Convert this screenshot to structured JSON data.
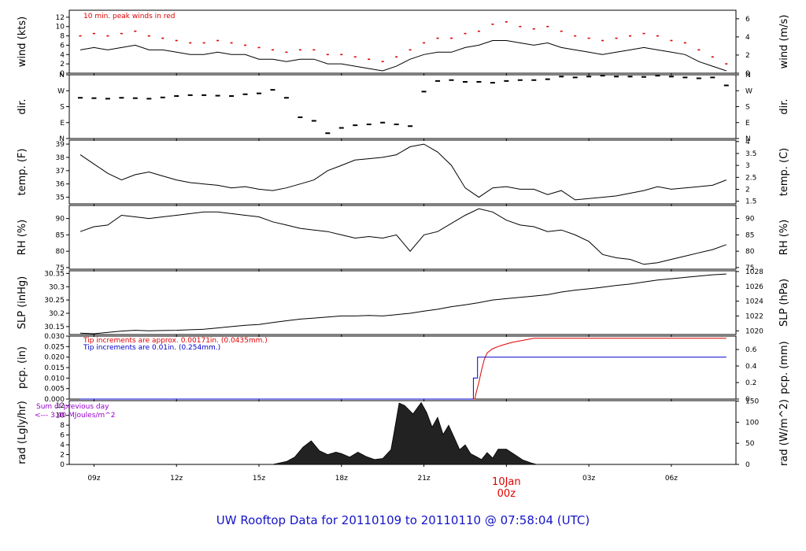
{
  "footer_title": "UW Rooftop Data for 20110109  to  20110110 @ 07:58:04  (UTC)",
  "date_label": "10Jan",
  "date_label_hour": "00z",
  "colors": {
    "red": "#e00000",
    "blue": "#0000cc",
    "purple": "#9900cc",
    "text_blue": "#1414c8"
  },
  "chart_data": [
    {
      "id": "wind",
      "type": "line",
      "ylabel": "wind (kts)",
      "ylabel_right": "wind (m/s)",
      "ylim": [
        0,
        13.5
      ],
      "yticks": [
        0,
        2,
        4,
        6,
        8,
        10,
        12
      ],
      "ylim_right": [
        0,
        6.94
      ],
      "yticks_right": [
        0,
        2,
        4,
        6
      ],
      "annotation": "10 min. peak winds in red",
      "series": [
        {
          "name": "wind speed",
          "x": [
            8.5,
            9,
            9.5,
            10,
            10.5,
            11,
            11.5,
            12,
            12.5,
            13,
            13.5,
            14,
            14.5,
            15,
            15.5,
            16,
            16.5,
            17,
            17.5,
            18,
            18.5,
            19,
            19.5,
            20,
            20.5,
            21,
            21.5,
            22,
            22.5,
            23,
            23.5,
            24,
            24.5,
            25,
            25.5,
            26,
            26.5,
            27,
            27.5,
            28,
            28.5,
            29,
            29.5,
            30,
            30.5,
            31,
            31.5,
            32
          ],
          "y": [
            5,
            5.5,
            5,
            5.5,
            6,
            5,
            5,
            4.5,
            4,
            4,
            4.5,
            4,
            4,
            3,
            3,
            2.5,
            3,
            3,
            2,
            2,
            1.5,
            1,
            0.5,
            1.5,
            3,
            4,
            4.5,
            4.5,
            5.5,
            6,
            7,
            7,
            6.5,
            6,
            6.5,
            5.5,
            5,
            4.5,
            4,
            4.5,
            5,
            5.5,
            5,
            4.5,
            4,
            2.5,
            1.5,
            0.5
          ]
        },
        {
          "name": "10 min. peak winds",
          "x": [
            8.5,
            9,
            9.5,
            10,
            10.5,
            11,
            11.5,
            12,
            12.5,
            13,
            13.5,
            14,
            14.5,
            15,
            15.5,
            16,
            16.5,
            17,
            17.5,
            18,
            18.5,
            19,
            19.5,
            20,
            20.5,
            21,
            21.5,
            22,
            22.5,
            23,
            23.5,
            24,
            24.5,
            25,
            25.5,
            26,
            26.5,
            27,
            27.5,
            28,
            28.5,
            29,
            29.5,
            30,
            30.5,
            31,
            31.5,
            32
          ],
          "y": [
            8,
            8.5,
            8,
            8.5,
            9,
            8,
            7.5,
            7,
            6.5,
            6.5,
            7,
            6.5,
            6,
            5.5,
            5,
            4.5,
            5,
            5,
            4,
            4,
            3.5,
            3,
            2.5,
            3.5,
            5,
            6.5,
            7.5,
            7.5,
            8.5,
            9,
            10.5,
            11,
            10,
            9.5,
            10,
            9,
            8,
            7.5,
            7,
            7.5,
            8,
            8.5,
            8,
            7,
            6.5,
            5,
            3.5,
            2
          ]
        }
      ]
    },
    {
      "id": "dir",
      "type": "scatter",
      "ylabel": "dir.",
      "ylabel_right": "dir.",
      "ylim": [
        0,
        360
      ],
      "yticks": [
        0,
        90,
        180,
        270,
        360
      ],
      "yticklabels": [
        "N",
        "E",
        "S",
        "W",
        "N"
      ],
      "series": [
        {
          "name": "wind direction",
          "x": [
            8.5,
            9,
            9.5,
            10,
            10.5,
            11,
            11.5,
            12,
            12.5,
            13,
            13.5,
            14,
            14.5,
            15,
            15.5,
            16,
            16.5,
            17,
            17.5,
            18,
            18.5,
            19,
            19.5,
            20,
            20.5,
            21,
            21.5,
            22,
            22.5,
            23,
            23.5,
            24,
            24.5,
            25,
            25.5,
            26,
            26.5,
            27,
            27.5,
            28,
            28.5,
            29,
            29.5,
            30,
            30.5,
            31,
            31.5,
            32
          ],
          "y": [
            230,
            228,
            225,
            230,
            228,
            225,
            232,
            240,
            245,
            245,
            242,
            240,
            250,
            255,
            275,
            230,
            120,
            100,
            30,
            60,
            75,
            80,
            90,
            80,
            70,
            265,
            325,
            330,
            320,
            320,
            315,
            325,
            330,
            330,
            335,
            350,
            345,
            350,
            355,
            350,
            350,
            348,
            355,
            350,
            345,
            340,
            345,
            300
          ]
        }
      ]
    },
    {
      "id": "temp",
      "type": "line",
      "ylabel": "temp. (F)",
      "ylabel_right": "temp. (C)",
      "ylim": [
        34.5,
        39.3
      ],
      "yticks": [
        35,
        36,
        37,
        38,
        39
      ],
      "ylim_right": [
        1.39,
        4.06
      ],
      "yticks_right": [
        1.5,
        2,
        2.5,
        3,
        3.5,
        4
      ],
      "series": [
        {
          "name": "temperature",
          "x": [
            8.5,
            9,
            9.5,
            10,
            10.5,
            11,
            11.5,
            12,
            12.5,
            13,
            13.5,
            14,
            14.5,
            15,
            15.5,
            16,
            16.5,
            17,
            17.5,
            18,
            18.5,
            19,
            19.5,
            20,
            20.5,
            21,
            21.5,
            22,
            22.5,
            23,
            23.5,
            24,
            24.5,
            25,
            25.5,
            26,
            26.5,
            27,
            27.5,
            28,
            28.5,
            29,
            29.5,
            30,
            30.5,
            31,
            31.5,
            32
          ],
          "y": [
            38.2,
            37.5,
            36.8,
            36.3,
            36.7,
            36.9,
            36.6,
            36.3,
            36.1,
            36.0,
            35.9,
            35.7,
            35.8,
            35.6,
            35.5,
            35.7,
            36.0,
            36.3,
            37.0,
            37.4,
            37.8,
            37.9,
            38.0,
            38.2,
            38.8,
            39.0,
            38.4,
            37.4,
            35.7,
            35.0,
            35.7,
            35.8,
            35.6,
            35.6,
            35.2,
            35.5,
            34.8,
            34.9,
            35.0,
            35.1,
            35.3,
            35.5,
            35.8,
            35.6,
            35.7,
            35.8,
            35.9,
            36.3
          ]
        }
      ]
    },
    {
      "id": "rh",
      "type": "line",
      "ylabel": "RH (%)",
      "ylabel_right": "RH (%)",
      "ylim": [
        74.5,
        94
      ],
      "yticks": [
        75,
        80,
        85,
        90
      ],
      "series": [
        {
          "name": "relative humidity",
          "x": [
            8.5,
            9,
            9.5,
            10,
            10.5,
            11,
            11.5,
            12,
            12.5,
            13,
            13.5,
            14,
            14.5,
            15,
            15.5,
            16,
            16.5,
            17,
            17.5,
            18,
            18.5,
            19,
            19.5,
            20,
            20.5,
            21,
            21.5,
            22,
            22.5,
            23,
            23.5,
            24,
            24.5,
            25,
            25.5,
            26,
            26.5,
            27,
            27.5,
            28,
            28.5,
            29,
            29.5,
            30,
            30.5,
            31,
            31.5,
            32
          ],
          "y": [
            86,
            87.5,
            88,
            91,
            90.5,
            90,
            90.5,
            91,
            91.5,
            92,
            92,
            91.5,
            91,
            90.5,
            89,
            88,
            87,
            86.5,
            86,
            85,
            84,
            84.5,
            84,
            85,
            80,
            85,
            86,
            88.5,
            91,
            93,
            92,
            89.5,
            88,
            87.5,
            86,
            86.5,
            85,
            83,
            79,
            78,
            77.5,
            76,
            76.5,
            77.5,
            78.5,
            79.5,
            80.5,
            82
          ]
        }
      ]
    },
    {
      "id": "slp",
      "type": "line",
      "ylabel": "SLP (inHg)",
      "ylabel_right": "SLP (hPa)",
      "ylim": [
        30.12,
        30.36
      ],
      "yticks": [
        30.15,
        30.2,
        30.25,
        30.3,
        30.35
      ],
      "ylim_right": [
        1019.5,
        1028.1
      ],
      "yticks_right": [
        1020,
        1022,
        1024,
        1026,
        1028
      ],
      "series": [
        {
          "name": "sea level pressure",
          "x": [
            8.5,
            9,
            9.5,
            10,
            10.5,
            11,
            11.5,
            12,
            12.5,
            13,
            13.5,
            14,
            14.5,
            15,
            15.5,
            16,
            16.5,
            17,
            17.5,
            18,
            18.5,
            19,
            19.5,
            20,
            20.5,
            21,
            21.5,
            22,
            22.5,
            23,
            23.5,
            24,
            24.5,
            25,
            25.5,
            26,
            26.5,
            27,
            27.5,
            28,
            28.5,
            29,
            29.5,
            30,
            30.5,
            31,
            31.5,
            32
          ],
          "y": [
            30.125,
            30.123,
            30.128,
            30.133,
            30.136,
            30.134,
            30.135,
            30.136,
            30.138,
            30.14,
            30.145,
            30.15,
            30.155,
            30.158,
            30.165,
            30.172,
            30.178,
            30.182,
            30.186,
            30.19,
            30.19,
            30.192,
            30.19,
            30.195,
            30.2,
            30.208,
            30.215,
            30.225,
            30.232,
            30.24,
            30.25,
            30.255,
            30.26,
            30.265,
            30.27,
            30.28,
            30.287,
            30.292,
            30.298,
            30.305,
            30.31,
            30.318,
            30.325,
            30.33,
            30.335,
            30.34,
            30.345,
            30.348
          ]
        }
      ]
    },
    {
      "id": "pcp",
      "type": "line",
      "ylabel": "pcp. (in)",
      "ylabel_right": "pcp. (mm)",
      "ylim": [
        0,
        0.03
      ],
      "yticks": [
        0,
        0.005,
        0.01,
        0.015,
        0.02,
        0.025,
        0.03
      ],
      "yticklabels": [
        "0.000",
        "0.005",
        "0.010",
        "0.015",
        "0.020",
        "0.025",
        "0.030"
      ],
      "ylim_right": [
        0,
        0.762
      ],
      "yticks_right": [
        0,
        0.2,
        0.4,
        0.6
      ],
      "annotations": [
        "Tip increments are approx. 0.00171in. (0.0435mm.)",
        "Tip increments are 0.01in. (0.254mm.)"
      ],
      "series": [
        {
          "name": "approx. tip gauge",
          "x": [
            8.5,
            22.85,
            22.9,
            23.0,
            23.1,
            23.2,
            23.3,
            23.5,
            23.8,
            24.2,
            25.0,
            32
          ],
          "y": [
            0,
            0,
            0.003,
            0.008,
            0.014,
            0.019,
            0.022,
            0.024,
            0.0255,
            0.027,
            0.029,
            0.029
          ]
        },
        {
          "name": "0.01 in. tip gauge",
          "x": [
            8.5,
            22.8,
            22.8,
            22.95,
            22.95,
            32
          ],
          "y": [
            0,
            0,
            0.01,
            0.01,
            0.02,
            0.02
          ]
        }
      ]
    },
    {
      "id": "rad",
      "type": "area",
      "ylabel": "rad (Lgly/hr)",
      "ylabel_right": "rad (W/m^2)",
      "ylim": [
        0,
        13
      ],
      "yticks": [
        0,
        2,
        4,
        6,
        8,
        10,
        12
      ],
      "ylim_right": [
        0,
        151
      ],
      "yticks_right": [
        0,
        50,
        100,
        150
      ],
      "annotations": [
        "Sum of previous day",
        "<--- 3.40 MJoules/m^2"
      ],
      "series": [
        {
          "name": "solar radiation",
          "x": [
            15.5,
            16,
            16.3,
            16.6,
            16.9,
            17.2,
            17.5,
            17.8,
            18,
            18.3,
            18.6,
            18.9,
            19.2,
            19.5,
            19.8,
            19.9,
            20.1,
            20.3,
            20.6,
            20.9,
            21.1,
            21.3,
            21.5,
            21.7,
            21.9,
            22.1,
            22.3,
            22.5,
            22.7,
            22.9,
            23.1,
            23.3,
            23.5,
            23.7,
            24,
            24.3,
            24.6,
            24.9,
            25.1
          ],
          "y": [
            0,
            0.6,
            1.5,
            3.5,
            4.8,
            2.8,
            2,
            2.5,
            2.2,
            1.5,
            2.5,
            1.6,
            1,
            1.2,
            3,
            6,
            12.5,
            12,
            10.3,
            12.6,
            10.6,
            7.6,
            9.6,
            6.1,
            8,
            5.5,
            3,
            4,
            2.2,
            1.6,
            1,
            2.4,
            1.3,
            3.1,
            3.1,
            2,
            0.9,
            0.3,
            0
          ]
        }
      ]
    }
  ],
  "x_axis": {
    "xlim": [
      8.1,
      32.35
    ],
    "ticks": [
      9,
      12,
      15,
      18,
      21,
      24,
      27,
      30
    ],
    "ticklabels": [
      "09z",
      "12z",
      "15z",
      "18z",
      "21z",
      "",
      "03z",
      "06z"
    ]
  }
}
